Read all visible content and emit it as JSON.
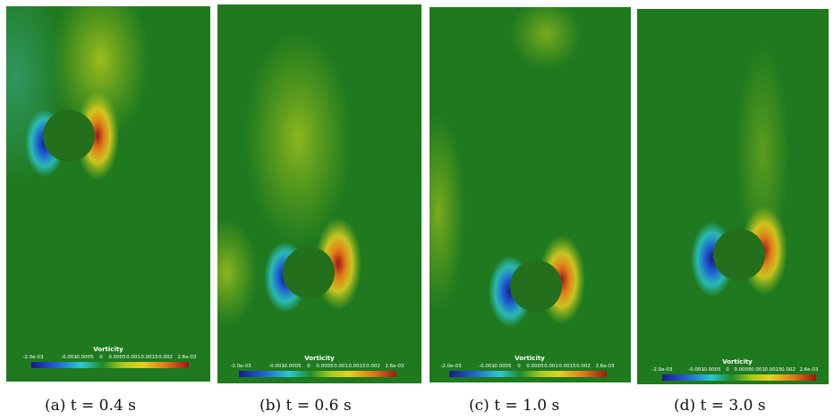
{
  "figure": {
    "colorbar": {
      "title": "Vorticity",
      "ticks": [
        "-2.0e-03",
        "-0.001",
        "-0.0005",
        "0",
        "0.0005",
        "0.001",
        "0.0015",
        "0.002",
        "2.6e-03"
      ],
      "range": [
        -0.002,
        0.0026
      ],
      "colormap": [
        "#1a1a8c",
        "#1f5fd1",
        "#2bc8d4",
        "#1f8c2a",
        "#a8c81c",
        "#e8d020",
        "#e07a18",
        "#a01818"
      ]
    },
    "panels": [
      {
        "caption": "(a) t = 0.4 s",
        "time_s": 0.4
      },
      {
        "caption": "(b) t = 0.6 s",
        "time_s": 0.6
      },
      {
        "caption": "(c) t = 1.0 s",
        "time_s": 1.0
      },
      {
        "caption": "(d) t = 3.0 s",
        "time_s": 3.0
      }
    ],
    "colors": {
      "background_field": "#1f7a1f",
      "cylinder": "#236f1b",
      "negative_core": "#1a1a8c",
      "positive_core": "#a01818"
    }
  }
}
